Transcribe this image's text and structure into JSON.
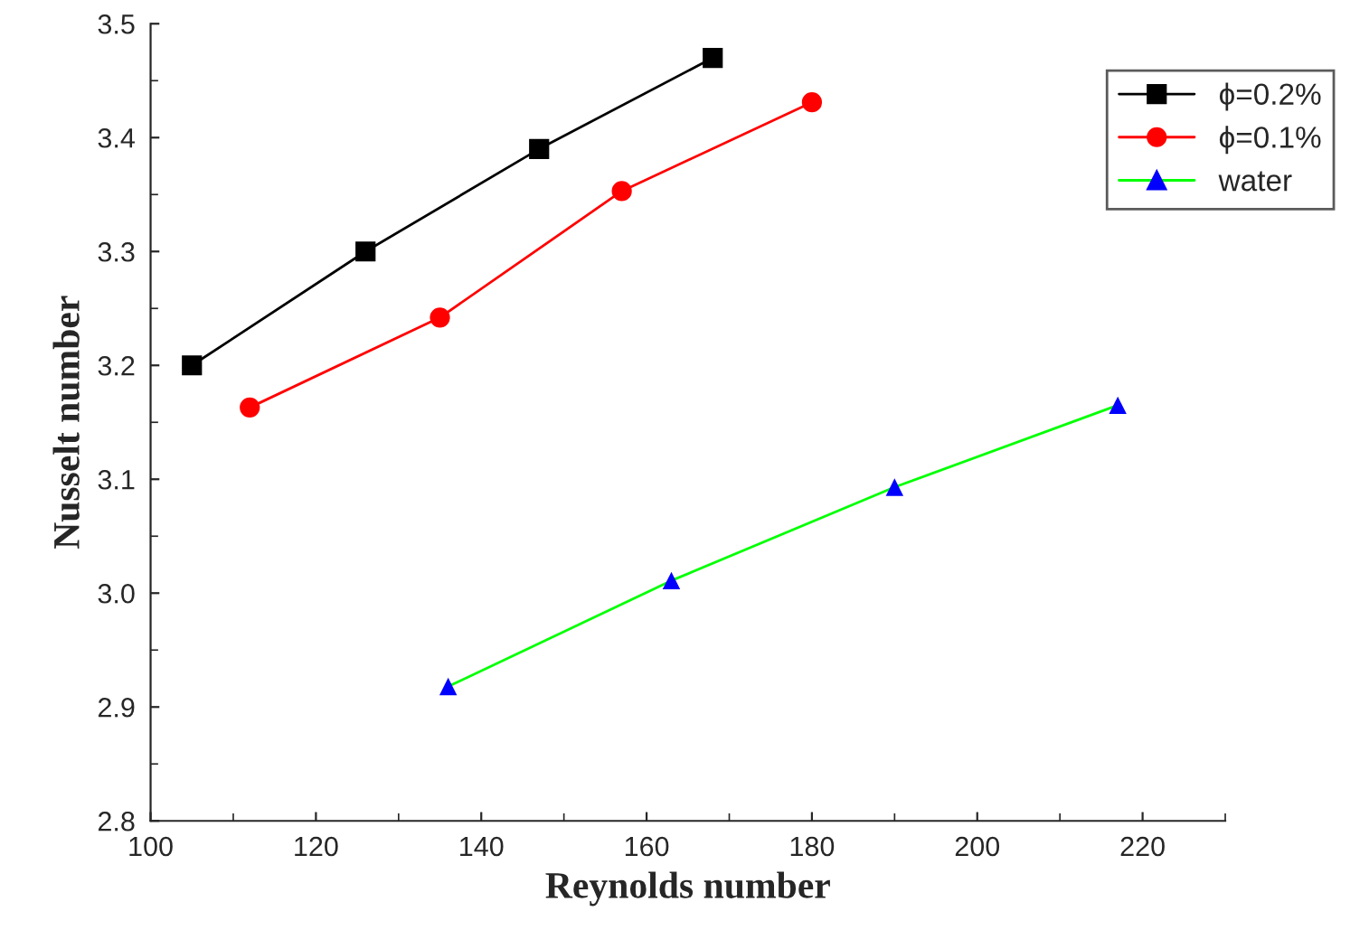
{
  "chart_data": {
    "type": "line",
    "xlabel": "Reynolds number",
    "ylabel": "Nusselt number",
    "xlim": [
      100,
      230
    ],
    "xticks": [
      100,
      120,
      140,
      160,
      180,
      200,
      220
    ],
    "ylim": [
      2.8,
      3.5
    ],
    "yticks": [
      {
        "value": 2.8,
        "label": "2.8"
      },
      {
        "value": 2.9,
        "label": "2.9"
      },
      {
        "value": 3.0,
        "label": "3.0"
      },
      {
        "value": 3.1,
        "label": "3.1"
      },
      {
        "value": 3.2,
        "label": "3.2"
      },
      {
        "value": 3.3,
        "label": "3.3"
      },
      {
        "value": 3.4,
        "label": "3.4"
      },
      {
        "value": 3.5,
        "label": "3.5"
      }
    ],
    "grid": false,
    "legend": "top right",
    "line_style": "solid",
    "series": [
      {
        "name": "ϕ=0.2%",
        "color": "#000000",
        "marker": "square",
        "x": [
          105,
          126,
          147,
          168
        ],
        "values": [
          3.2,
          3.3,
          3.39,
          3.47
        ]
      },
      {
        "name": "ϕ=0.1%",
        "color": "#ff0000",
        "marker": "circle",
        "x": [
          112,
          135,
          157,
          180
        ],
        "values": [
          3.163,
          3.242,
          3.353,
          3.431
        ]
      },
      {
        "name": "water",
        "color": "#00ff00",
        "colors": [
          "#0000ff",
          "#0000ff",
          "#0000ff",
          "#0000ff"
        ],
        "marker": "triangle",
        "x": [
          136,
          163,
          190,
          217
        ],
        "values": [
          2.918,
          3.011,
          3.093,
          3.165
        ]
      }
    ]
  }
}
